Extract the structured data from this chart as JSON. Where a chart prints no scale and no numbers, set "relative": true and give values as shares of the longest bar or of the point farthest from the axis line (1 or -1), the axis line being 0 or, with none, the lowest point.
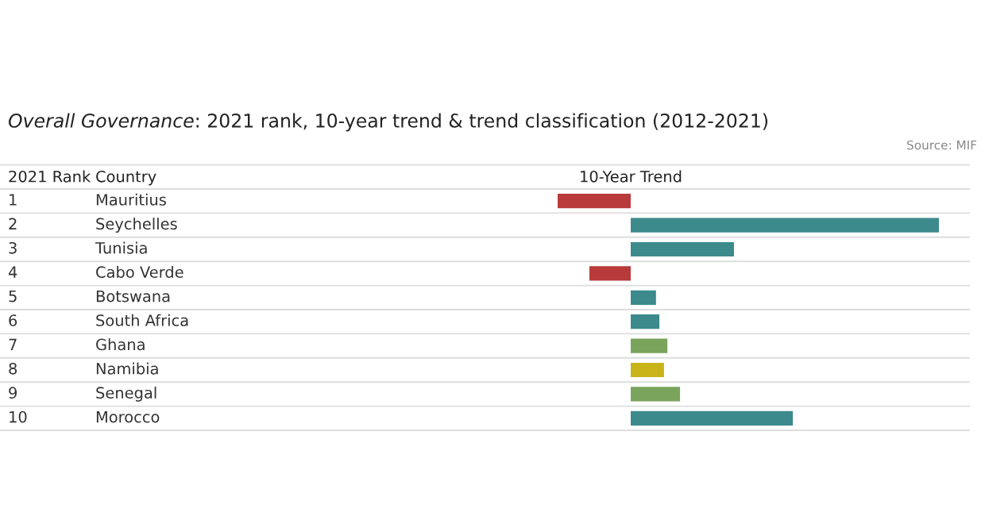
{
  "chart_data": {
    "type": "bar",
    "orientation": "horizontal",
    "relative": true,
    "title": "Overall Governance: 2021 rank, 10-year trend & trend classification (2012-2021)",
    "xlabel": "10-Year Trend",
    "ylabel": "Country",
    "categories": [
      "Mauritius",
      "Seychelles",
      "Tunisia",
      "Cabo Verde",
      "Botswana",
      "South Africa",
      "Ghana",
      "Namibia",
      "Senegal",
      "Morocco"
    ],
    "values": [
      -0.237,
      1,
      0.335,
      -0.134,
      0.082,
      0.093,
      0.119,
      0.108,
      0.16,
      0.526
    ],
    "colors": [
      "#b83a3a",
      "#3d8a8c",
      "#3d8a8c",
      "#b83a3a",
      "#3d8a8c",
      "#3d8a8c",
      "#7aa35c",
      "#c8b418",
      "#7aa35c",
      "#3d8a8c"
    ],
    "annotations": [
      "2021 Rank",
      "Source: MIF",
      "1",
      "2",
      "3",
      "4",
      "5",
      "6",
      "7",
      "8",
      "9",
      "10"
    ]
  }
}
